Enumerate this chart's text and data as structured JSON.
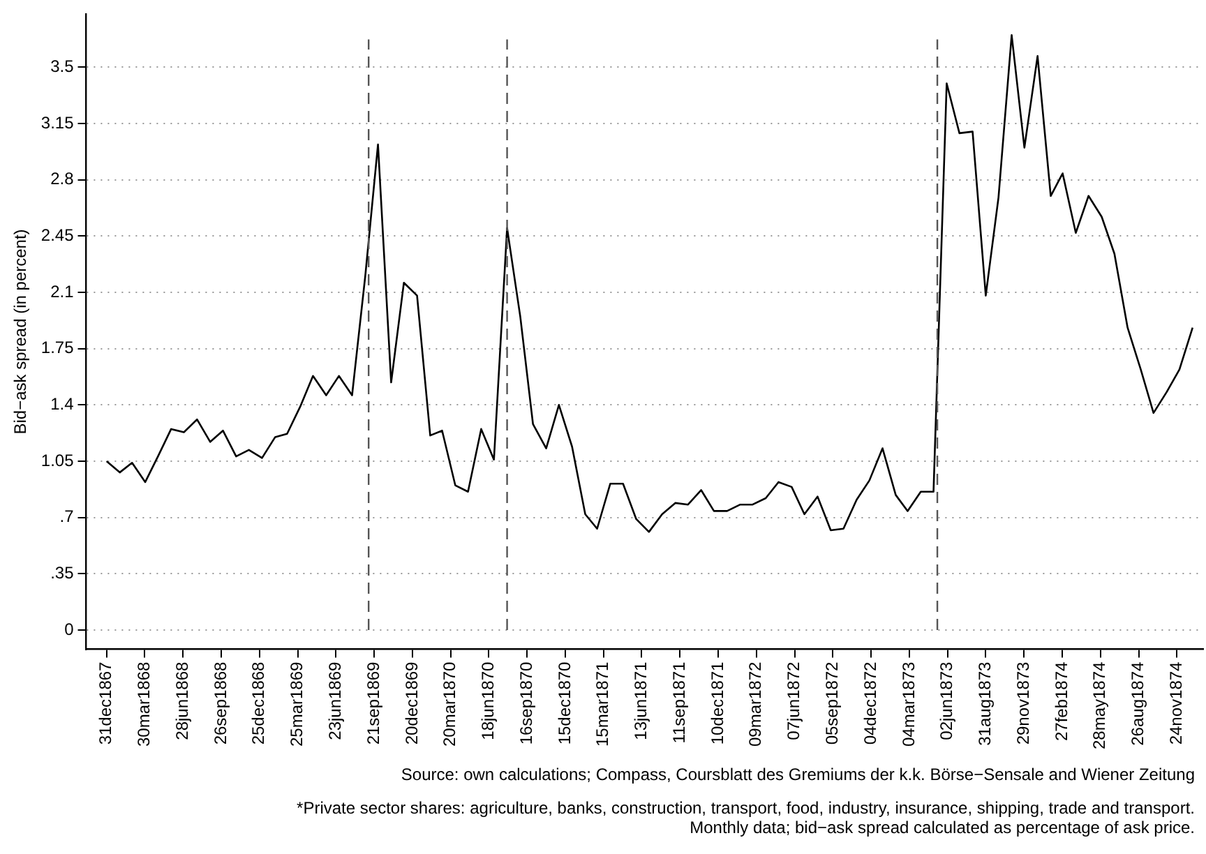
{
  "chart_data": {
    "type": "line",
    "ylabel": "Bid−ask spread (in percent)",
    "x": [
      "1867-12-31",
      "1868-01-31",
      "1868-02-29",
      "1868-03-31",
      "1868-04-30",
      "1868-05-31",
      "1868-06-30",
      "1868-07-31",
      "1868-08-31",
      "1868-09-30",
      "1868-10-31",
      "1868-11-30",
      "1868-12-31",
      "1869-01-31",
      "1869-02-28",
      "1869-03-31",
      "1869-04-30",
      "1869-05-31",
      "1869-06-30",
      "1869-07-31",
      "1869-08-31",
      "1869-09-30",
      "1869-10-31",
      "1869-11-30",
      "1869-12-31",
      "1870-01-31",
      "1870-02-28",
      "1870-03-31",
      "1870-04-30",
      "1870-05-31",
      "1870-06-30",
      "1870-07-31",
      "1870-08-31",
      "1870-09-30",
      "1870-10-31",
      "1870-11-30",
      "1870-12-31",
      "1871-01-31",
      "1871-02-28",
      "1871-03-31",
      "1871-04-30",
      "1871-05-31",
      "1871-06-30",
      "1871-07-31",
      "1871-08-31",
      "1871-09-30",
      "1871-10-31",
      "1871-11-30",
      "1871-12-31",
      "1872-01-31",
      "1872-02-29",
      "1872-03-31",
      "1872-04-30",
      "1872-05-31",
      "1872-06-30",
      "1872-07-31",
      "1872-08-31",
      "1872-09-30",
      "1872-10-31",
      "1872-11-30",
      "1872-12-31",
      "1873-01-31",
      "1873-02-28",
      "1873-03-31",
      "1873-04-30",
      "1873-05-31",
      "1873-06-30",
      "1873-07-31",
      "1873-08-31",
      "1873-09-30",
      "1873-10-31",
      "1873-11-30",
      "1873-12-31",
      "1874-01-31",
      "1874-02-28",
      "1874-03-31",
      "1874-04-30",
      "1874-05-31",
      "1874-06-30",
      "1874-07-31",
      "1874-08-31",
      "1874-09-30",
      "1874-10-31",
      "1874-11-30",
      "1874-12-31"
    ],
    "series": [
      {
        "color": "#000000",
        "values": [
          1.05,
          0.98,
          1.04,
          0.92,
          1.08,
          1.25,
          1.23,
          1.31,
          1.17,
          1.24,
          1.08,
          1.12,
          1.07,
          1.2,
          1.22,
          1.39,
          1.58,
          1.46,
          1.58,
          1.46,
          2.2,
          3.02,
          1.54,
          2.16,
          2.08,
          1.21,
          1.24,
          0.9,
          0.86,
          1.25,
          1.06,
          2.5,
          1.95,
          1.28,
          1.13,
          1.4,
          1.14,
          0.72,
          0.63,
          0.91,
          0.91,
          0.69,
          0.61,
          0.72,
          0.79,
          0.78,
          0.87,
          0.74,
          0.74,
          0.78,
          0.78,
          0.82,
          0.92,
          0.89,
          0.72,
          0.83,
          0.62,
          0.63,
          0.81,
          0.93,
          1.13,
          0.84,
          0.74,
          0.86,
          0.86,
          3.4,
          3.09,
          3.1,
          2.08,
          2.69,
          3.7,
          3.0,
          3.57,
          2.7,
          2.84,
          2.47,
          2.7,
          2.57,
          2.34,
          1.88,
          1.62,
          1.35,
          1.48,
          1.62,
          1.88
        ]
      }
    ],
    "xlim": [
      "1867-11-13",
      "1875-01-25"
    ],
    "xticks": [
      {
        "value": "1867-12-31",
        "label": "31dec1867"
      },
      {
        "value": "1868-03-30",
        "label": "30mar1868"
      },
      {
        "value": "1868-06-28",
        "label": "28jun1868"
      },
      {
        "value": "1868-09-26",
        "label": "26sep1868"
      },
      {
        "value": "1868-12-25",
        "label": "25dec1868"
      },
      {
        "value": "1869-03-25",
        "label": "25mar1869"
      },
      {
        "value": "1869-06-23",
        "label": "23jun1869"
      },
      {
        "value": "1869-09-21",
        "label": "21sep1869"
      },
      {
        "value": "1869-12-20",
        "label": "20dec1869"
      },
      {
        "value": "1870-03-20",
        "label": "20mar1870"
      },
      {
        "value": "1870-06-18",
        "label": "18jun1870"
      },
      {
        "value": "1870-09-16",
        "label": "16sep1870"
      },
      {
        "value": "1870-12-15",
        "label": "15dec1870"
      },
      {
        "value": "1871-03-15",
        "label": "15mar1871"
      },
      {
        "value": "1871-06-13",
        "label": "13jun1871"
      },
      {
        "value": "1871-09-11",
        "label": "11sep1871"
      },
      {
        "value": "1871-12-10",
        "label": "10dec1871"
      },
      {
        "value": "1872-03-09",
        "label": "09mar1872"
      },
      {
        "value": "1872-06-07",
        "label": "07jun1872"
      },
      {
        "value": "1872-09-05",
        "label": "05sep1872"
      },
      {
        "value": "1872-12-04",
        "label": "04dec1872"
      },
      {
        "value": "1873-03-04",
        "label": "04mar1873"
      },
      {
        "value": "1873-06-02",
        "label": "02jun1873"
      },
      {
        "value": "1873-08-31",
        "label": "31aug1873"
      },
      {
        "value": "1873-11-29",
        "label": "29nov1873"
      },
      {
        "value": "1874-02-27",
        "label": "27feb1874"
      },
      {
        "value": "1874-05-28",
        "label": "28may1874"
      },
      {
        "value": "1874-08-26",
        "label": "26aug1874"
      },
      {
        "value": "1874-11-24",
        "label": "24nov1874"
      }
    ],
    "ylim": [
      -0.12,
      3.83
    ],
    "yticks": [
      0,
      {
        "value": 0.35,
        "label": ".35"
      },
      {
        "value": 0.7,
        "label": ".7"
      },
      1.05,
      1.4,
      1.75,
      2.1,
      2.45,
      2.8,
      3.15,
      3.5
    ],
    "grid": "y",
    "legend": false,
    "ref_lines": [
      {
        "axis": "x",
        "value": "1869-09-08",
        "color": "#555555",
        "line_style": "dashed"
      },
      {
        "axis": "x",
        "value": "1870-07-31",
        "color": "#555555",
        "line_style": "dashed"
      },
      {
        "axis": "x",
        "value": "1873-05-09",
        "color": "#555555",
        "line_style": "dashed"
      }
    ],
    "annotations": [
      "Source: own calculations; Compass, Coursblatt des Gremiums der k.k. Börse−Sensale and Wiener Zeitung",
      "*Private sector shares: agriculture, banks, construction, transport, food, industry, insurance, shipping, trade and transport.",
      "Monthly data; bid−ask spread calculated as percentage of ask price."
    ]
  }
}
